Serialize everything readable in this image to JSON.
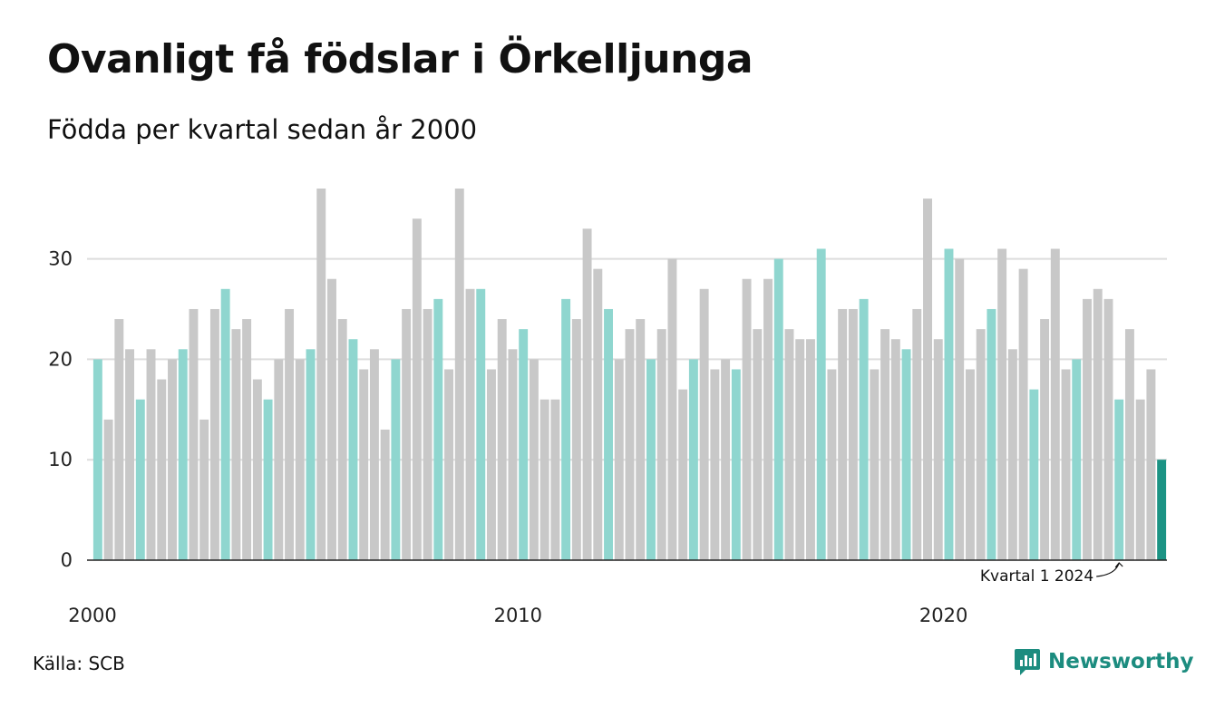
{
  "header": {
    "title": "Ovanligt få födslar i Örkelljunga",
    "subtitle": "Födda per kvartal sedan år 2000"
  },
  "footer": {
    "source": "Källa: SCB",
    "brand": "Newsworthy",
    "brand_icon": "bar-chart-speech-bubble-icon"
  },
  "colors": {
    "highlight_quarter": "#8fd6cf",
    "other_quarter": "#c8c8c8",
    "latest": "#1b9384",
    "grid": "#dddddd",
    "brand": "#1c8c7f"
  },
  "chart_data": {
    "type": "bar",
    "title": "Ovanligt få födslar i Örkelljunga",
    "subtitle": "Födda per kvartal sedan år 2000",
    "xlabel": "",
    "ylabel": "",
    "ylim": [
      0,
      37
    ],
    "y_ticks": [
      0,
      10,
      20,
      30
    ],
    "x_tick_labels": [
      "2000",
      "2010",
      "2020"
    ],
    "grid": true,
    "legend": "none",
    "highlight_rule": "kvartal 1 of each year in light teal; latest quarter in dark teal",
    "annotation": {
      "text": "Kvartal 1 2024",
      "target_index": 96
    },
    "values": [
      20,
      14,
      24,
      21,
      16,
      21,
      18,
      20,
      21,
      25,
      14,
      25,
      27,
      23,
      24,
      18,
      16,
      20,
      25,
      20,
      21,
      37,
      28,
      24,
      22,
      19,
      21,
      13,
      20,
      25,
      34,
      25,
      26,
      19,
      37,
      27,
      27,
      19,
      24,
      21,
      23,
      20,
      16,
      16,
      26,
      24,
      33,
      29,
      25,
      20,
      23,
      24,
      20,
      23,
      30,
      17,
      20,
      27,
      19,
      20,
      19,
      28,
      23,
      28,
      30,
      23,
      22,
      22,
      31,
      19,
      25,
      25,
      26,
      19,
      23,
      22,
      21,
      25,
      36,
      22,
      31,
      30,
      19,
      23,
      25,
      31,
      21,
      29,
      17,
      24,
      31,
      19,
      20,
      26,
      27,
      26,
      16,
      23,
      16,
      19,
      10
    ]
  }
}
